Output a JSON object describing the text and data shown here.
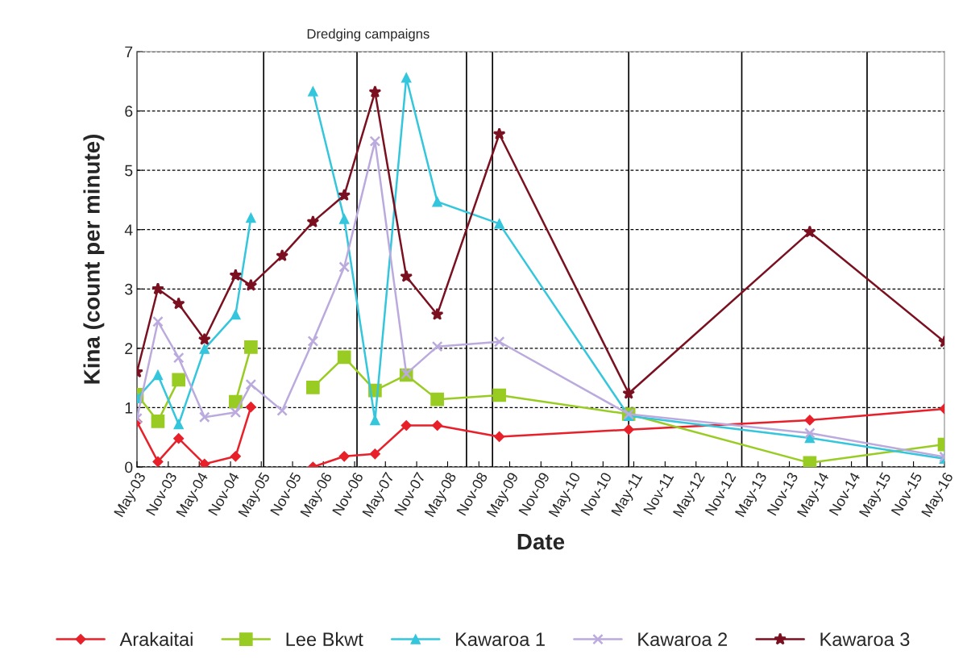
{
  "chart_data": {
    "type": "line",
    "xlabel": "Date",
    "ylabel": "Kina (count per minute)",
    "annotations": [
      "Dredging campaigns"
    ],
    "xlim": [
      "2003-05",
      "2016-05"
    ],
    "xticks": [
      {
        "value": "2003-05",
        "label": "May-03"
      },
      {
        "value": "2003-11",
        "label": "Nov-03"
      },
      {
        "value": "2004-05",
        "label": "May-04"
      },
      {
        "value": "2004-11",
        "label": "Nov-04"
      },
      {
        "value": "2005-05",
        "label": "May-05"
      },
      {
        "value": "2005-11",
        "label": "Nov-05"
      },
      {
        "value": "2006-05",
        "label": "May-06"
      },
      {
        "value": "2006-11",
        "label": "Nov-06"
      },
      {
        "value": "2007-05",
        "label": "May-07"
      },
      {
        "value": "2007-11",
        "label": "Nov-07"
      },
      {
        "value": "2008-05",
        "label": "May-08"
      },
      {
        "value": "2008-11",
        "label": "Nov-08"
      },
      {
        "value": "2009-05",
        "label": "May-09"
      },
      {
        "value": "2009-11",
        "label": "Nov-09"
      },
      {
        "value": "2010-05",
        "label": "May-10"
      },
      {
        "value": "2010-11",
        "label": "Nov-10"
      },
      {
        "value": "2011-05",
        "label": "May-11"
      },
      {
        "value": "2011-11",
        "label": "Nov-11"
      },
      {
        "value": "2012-05",
        "label": "May-12"
      },
      {
        "value": "2012-11",
        "label": "Nov-12"
      },
      {
        "value": "2013-05",
        "label": "May-13"
      },
      {
        "value": "2013-11",
        "label": "Nov-13"
      },
      {
        "value": "2014-05",
        "label": "May-14"
      },
      {
        "value": "2014-11",
        "label": "Nov-14"
      },
      {
        "value": "2015-05",
        "label": "May-15"
      },
      {
        "value": "2015-11",
        "label": "Nov-15"
      },
      {
        "value": "2016-05",
        "label": "May-16"
      }
    ],
    "ylim": [
      0,
      7
    ],
    "yticks": [
      0,
      1,
      2,
      3,
      4,
      5,
      6,
      7
    ],
    "grid": "y",
    "legend": "bottom",
    "ref_lines": [
      {
        "axis": "x",
        "value": "2005-05-15",
        "color": "#000000"
      },
      {
        "axis": "x",
        "value": "2006-11-15",
        "color": "#000000"
      },
      {
        "axis": "x",
        "value": "2008-08-20",
        "color": "#000000"
      },
      {
        "axis": "x",
        "value": "2009-01-20",
        "color": "#000000"
      },
      {
        "axis": "x",
        "value": "2011-04-01",
        "color": "#000000"
      },
      {
        "axis": "x",
        "value": "2013-01-25",
        "color": "#000000"
      },
      {
        "axis": "x",
        "value": "2015-02-01",
        "color": "#000000"
      }
    ],
    "series": [
      {
        "name": "Arakaitai",
        "color": "#e8202a",
        "marker": "diamond",
        "x": [
          "2003-05",
          "2003-09",
          "2004-01",
          "2004-06",
          "2004-12",
          "2005-03",
          "2005-09",
          "2006-03",
          "2006-09",
          "2007-03",
          "2007-09",
          "2008-03",
          "2009-03",
          "2011-04",
          "2014-03",
          "2016-05"
        ],
        "values": [
          0.76,
          0.09,
          0.48,
          0.05,
          0.18,
          1.01,
          null,
          0.0,
          0.18,
          0.22,
          0.7,
          0.7,
          0.51,
          0.63,
          0.79,
          0.98
        ]
      },
      {
        "name": "Lee Bkwt",
        "color": "#99cc22",
        "marker": "square",
        "x": [
          "2003-05",
          "2003-09",
          "2004-01",
          "2004-06",
          "2004-12",
          "2005-03",
          "2005-09",
          "2006-03",
          "2006-09",
          "2007-03",
          "2007-09",
          "2008-03",
          "2009-03",
          "2011-04",
          "2014-03",
          "2016-05"
        ],
        "values": [
          1.22,
          0.77,
          1.47,
          null,
          1.1,
          2.02,
          null,
          1.34,
          1.85,
          1.29,
          1.55,
          1.14,
          1.21,
          0.89,
          0.07,
          0.38
        ]
      },
      {
        "name": "Kawaroa 1",
        "color": "#33c6dc",
        "marker": "triangle",
        "x": [
          "2003-05",
          "2003-09",
          "2004-01",
          "2004-06",
          "2004-12",
          "2005-03",
          "2005-09",
          "2006-03",
          "2006-09",
          "2007-03",
          "2007-09",
          "2008-03",
          "2009-03",
          "2011-04",
          "2014-03",
          "2016-05"
        ],
        "values": [
          1.16,
          1.55,
          0.72,
          1.99,
          2.57,
          4.2,
          null,
          6.33,
          4.18,
          0.79,
          6.56,
          4.47,
          4.1,
          0.86,
          0.49,
          0.14
        ]
      },
      {
        "name": "Kawaroa 2",
        "color": "#bbaadd",
        "marker": "cross",
        "x": [
          "2003-05",
          "2003-09",
          "2004-01",
          "2004-06",
          "2004-12",
          "2005-03",
          "2005-09",
          "2006-03",
          "2006-09",
          "2007-03",
          "2007-09",
          "2008-03",
          "2009-03",
          "2011-04",
          "2014-03",
          "2016-05"
        ],
        "values": [
          0.82,
          2.45,
          1.84,
          0.84,
          0.92,
          1.39,
          0.95,
          2.12,
          3.37,
          5.49,
          1.57,
          2.03,
          2.11,
          0.89,
          0.57,
          0.17
        ]
      },
      {
        "name": "Kawaroa 3",
        "color": "#7a1020",
        "marker": "star",
        "x": [
          "2003-05",
          "2003-09",
          "2004-01",
          "2004-06",
          "2004-12",
          "2005-03",
          "2005-09",
          "2006-03",
          "2006-09",
          "2007-03",
          "2007-09",
          "2008-03",
          "2009-03",
          "2011-04",
          "2014-03",
          "2016-05"
        ],
        "values": [
          1.6,
          3.0,
          2.75,
          2.15,
          3.23,
          3.06,
          3.56,
          4.13,
          4.58,
          6.32,
          3.21,
          2.57,
          5.61,
          1.24,
          3.96,
          2.11
        ]
      }
    ]
  }
}
